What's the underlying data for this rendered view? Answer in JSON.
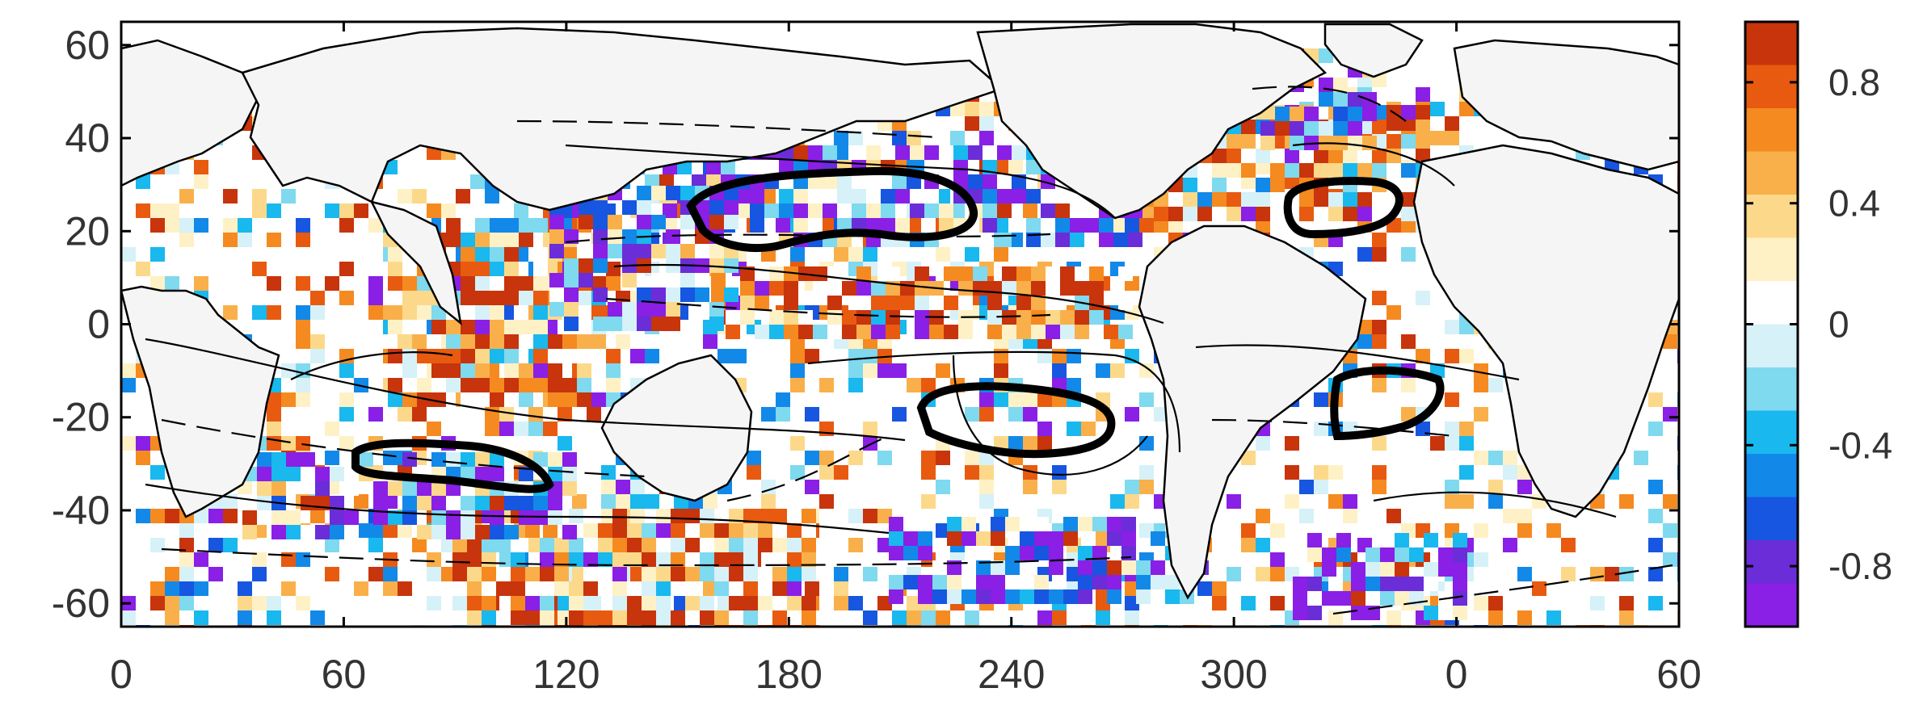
{
  "map": {
    "x_ticks": [
      "0",
      "60",
      "120",
      "180",
      "240",
      "300",
      "0",
      "60"
    ],
    "y_ticks": [
      "60",
      "40",
      "20",
      "0",
      "-20",
      "-40",
      "-60"
    ],
    "x_range_deg": [
      0,
      420
    ],
    "y_range_deg": [
      -65,
      65
    ],
    "land_color": "#f5f5f5",
    "ocean_color": "#ffffff",
    "contour_color": "#000000"
  },
  "colorbar": {
    "ticks": [
      "0.8",
      "0.4",
      "0",
      "-0.4",
      "-0.8"
    ],
    "tick_values": [
      0.8,
      0.4,
      0,
      -0.4,
      -0.8
    ],
    "range": [
      -1,
      1
    ],
    "colors_top_to_bottom": [
      "#c8340c",
      "#e85a10",
      "#f58a20",
      "#f9b04a",
      "#fcd98a",
      "#fff1c6",
      "#ffffff",
      "#d6f1f8",
      "#7fd9ef",
      "#19b8ee",
      "#1289e8",
      "#1756e0",
      "#6b2dd8",
      "#8a1fe6"
    ]
  }
}
